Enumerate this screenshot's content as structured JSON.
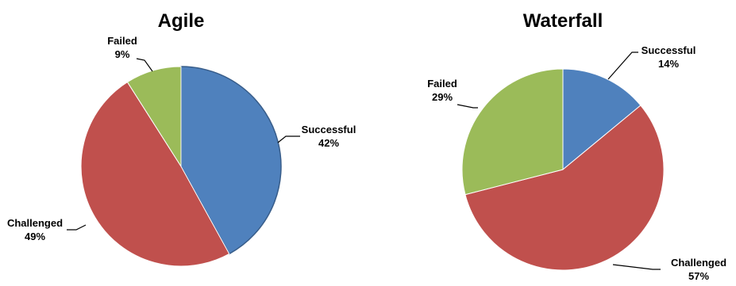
{
  "chart_data": [
    {
      "type": "pie",
      "title": "Agile",
      "slices": [
        {
          "name": "Successful",
          "value": 42,
          "label": "42%",
          "color": "#4F81BD"
        },
        {
          "name": "Challenged",
          "value": 49,
          "label": "49%",
          "color": "#C0504D"
        },
        {
          "name": "Failed",
          "value": 9,
          "label": "9%",
          "color": "#9BBB59"
        }
      ]
    },
    {
      "type": "pie",
      "title": "Waterfall",
      "slices": [
        {
          "name": "Successful",
          "value": 14,
          "label": "14%",
          "color": "#4F81BD"
        },
        {
          "name": "Challenged",
          "value": 57,
          "label": "57%",
          "color": "#C0504D"
        },
        {
          "name": "Failed",
          "value": 29,
          "label": "29%",
          "color": "#9BBB59"
        }
      ]
    }
  ]
}
